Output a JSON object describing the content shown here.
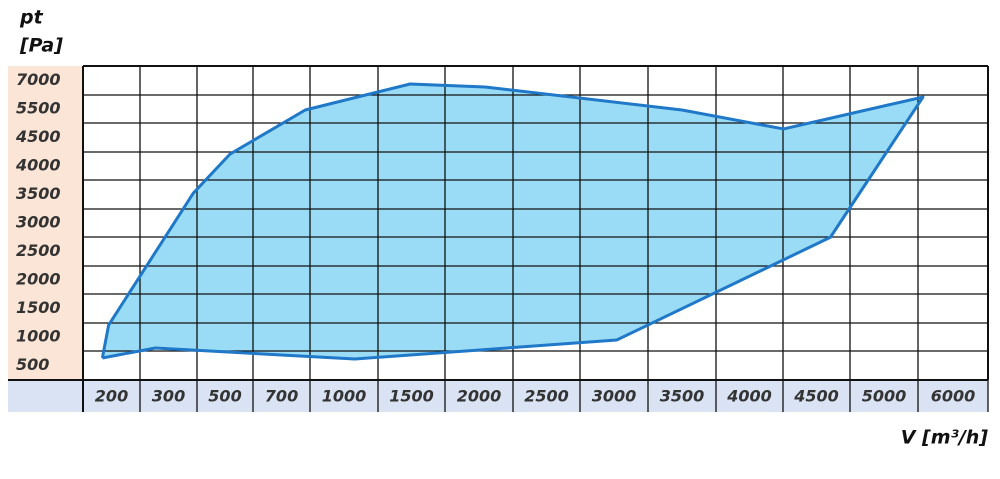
{
  "chart_data": {
    "type": "area",
    "y_label": [
      "pt",
      "[Pa]"
    ],
    "x_label": "V [m³/h]",
    "xticks": [
      200,
      300,
      500,
      700,
      1000,
      1500,
      2000,
      2500,
      3000,
      3500,
      4000,
      4500,
      5000,
      6000
    ],
    "yticks": [
      7000,
      5500,
      4500,
      4000,
      3500,
      3000,
      2500,
      2000,
      1500,
      1000,
      500
    ],
    "grid": true,
    "series": [
      {
        "color": "#1f78c8",
        "fill": "#9adcf5",
        "x": [
          184,
          195,
          388,
          518,
          814,
          1490,
          2045,
          3500,
          4254,
          5565,
          4603,
          3020,
          1080,
          277,
          184
        ],
        "values": [
          632,
          1210,
          3525,
          4210,
          5465,
          6816,
          6658,
          5465,
          4800,
          6130,
          2750,
          947,
          614,
          807,
          632
        ]
      }
    ]
  }
}
